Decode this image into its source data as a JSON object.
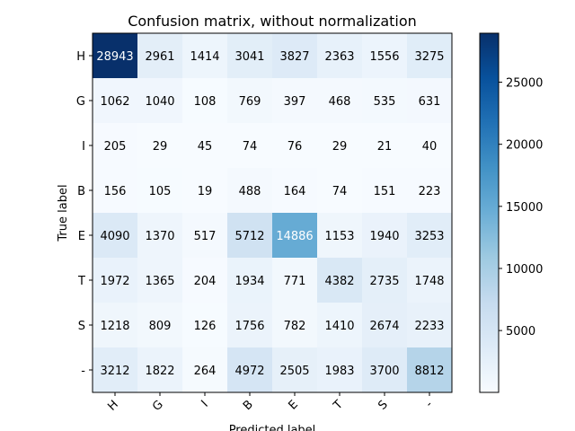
{
  "chart_data": {
    "type": "heatmap",
    "title": "Confusion matrix, without normalization",
    "xlabel": "Predicted label",
    "ylabel": "True label",
    "row_labels": [
      "H",
      "G",
      "I",
      "B",
      "E",
      "T",
      "S",
      "-"
    ],
    "col_labels": [
      "H",
      "G",
      "I",
      "B",
      "E",
      "T",
      "S",
      "-"
    ],
    "values": [
      [
        28943,
        2961,
        1414,
        3041,
        3827,
        2363,
        1556,
        3275
      ],
      [
        1062,
        1040,
        108,
        769,
        397,
        468,
        535,
        631
      ],
      [
        205,
        29,
        45,
        74,
        76,
        29,
        21,
        40
      ],
      [
        156,
        105,
        19,
        488,
        164,
        74,
        151,
        223
      ],
      [
        4090,
        1370,
        517,
        5712,
        14886,
        1153,
        1940,
        3253
      ],
      [
        1972,
        1365,
        204,
        1934,
        771,
        4382,
        2735,
        1748
      ],
      [
        1218,
        809,
        126,
        1756,
        782,
        1410,
        2674,
        2233
      ],
      [
        3212,
        1822,
        264,
        4972,
        2505,
        1983,
        3700,
        8812
      ]
    ],
    "colorbar": {
      "colormap": "Blues",
      "min": 19,
      "max": 28943,
      "ticks": [
        5000,
        10000,
        15000,
        20000,
        25000
      ]
    },
    "grid": false,
    "legend": "colorbar-right"
  }
}
